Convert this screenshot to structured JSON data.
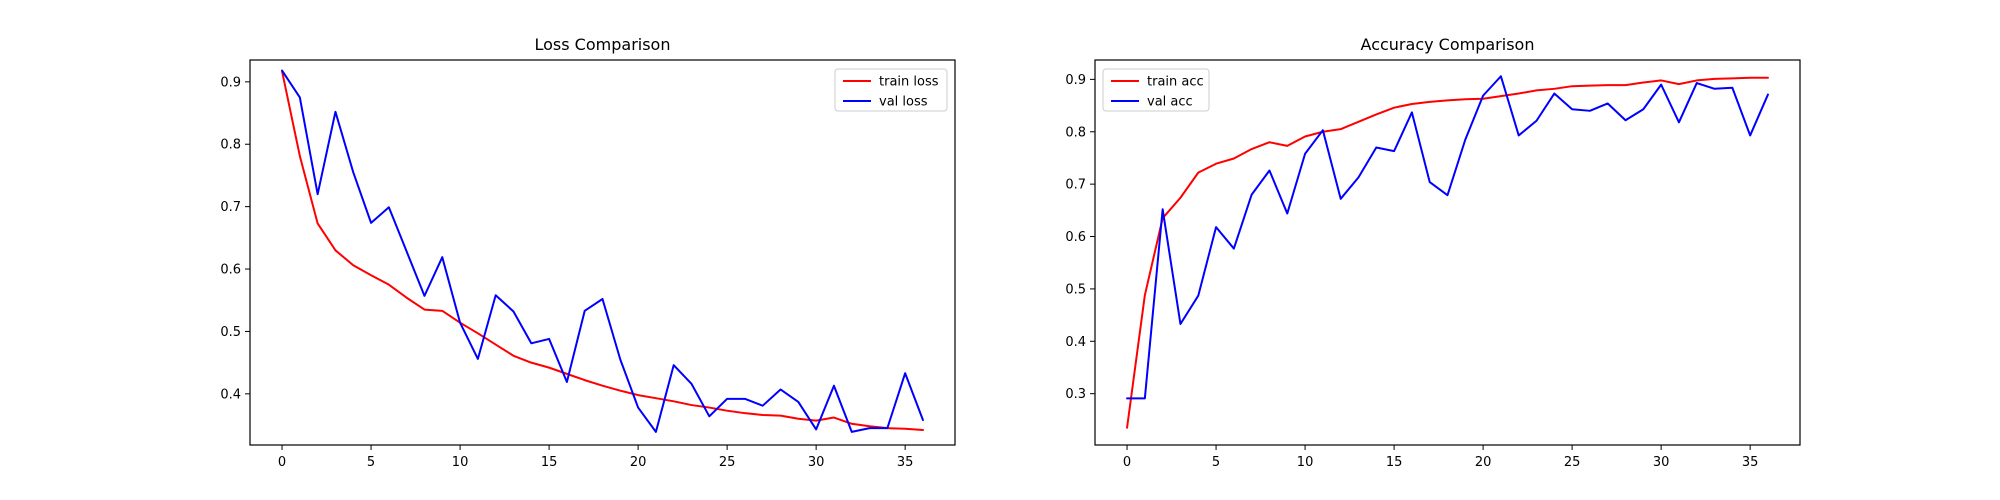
{
  "chart_data": [
    {
      "type": "line",
      "title": "Loss Comparison",
      "xlabel": "",
      "ylabel": "",
      "xlim": [
        -1.8,
        37.8
      ],
      "ylim": [
        0.318,
        0.935
      ],
      "xticks": [
        0,
        5,
        10,
        15,
        20,
        25,
        30,
        35
      ],
      "yticks": [
        0.4,
        0.5,
        0.6,
        0.7,
        0.8,
        0.9
      ],
      "grid": false,
      "legend_position": "top-right",
      "series": [
        {
          "name": "train loss",
          "color": "#ff0000",
          "x": [
            0,
            1,
            2,
            3,
            4,
            5,
            6,
            7,
            8,
            9,
            10,
            11,
            12,
            13,
            14,
            15,
            16,
            17,
            18,
            19,
            20,
            21,
            22,
            23,
            24,
            25,
            26,
            27,
            28,
            29,
            30,
            31,
            32,
            33,
            34,
            35,
            36
          ],
          "y": [
            0.917,
            0.781,
            0.673,
            0.63,
            0.606,
            0.59,
            0.575,
            0.554,
            0.535,
            0.533,
            0.514,
            0.497,
            0.479,
            0.461,
            0.45,
            0.442,
            0.432,
            0.422,
            0.413,
            0.405,
            0.398,
            0.393,
            0.388,
            0.382,
            0.378,
            0.373,
            0.369,
            0.366,
            0.365,
            0.36,
            0.357,
            0.362,
            0.352,
            0.348,
            0.345,
            0.344,
            0.342
          ]
        },
        {
          "name": "val loss",
          "color": "#0000ff",
          "x": [
            0,
            1,
            2,
            3,
            4,
            5,
            6,
            7,
            8,
            9,
            10,
            11,
            12,
            13,
            14,
            15,
            16,
            17,
            18,
            19,
            20,
            21,
            22,
            23,
            24,
            25,
            26,
            27,
            28,
            29,
            30,
            31,
            32,
            33,
            34,
            35,
            36
          ],
          "y": [
            0.918,
            0.875,
            0.72,
            0.852,
            0.755,
            0.674,
            0.699,
            0.628,
            0.557,
            0.619,
            0.514,
            0.456,
            0.558,
            0.532,
            0.481,
            0.488,
            0.419,
            0.533,
            0.552,
            0.455,
            0.378,
            0.339,
            0.446,
            0.416,
            0.364,
            0.392,
            0.392,
            0.381,
            0.407,
            0.387,
            0.343,
            0.413,
            0.339,
            0.345,
            0.345,
            0.433,
            0.358
          ]
        }
      ]
    },
    {
      "type": "line",
      "title": "Accuracy Comparison",
      "xlabel": "",
      "ylabel": "",
      "xlim": [
        -1.8,
        37.8
      ],
      "ylim": [
        0.202,
        0.937
      ],
      "xticks": [
        0,
        5,
        10,
        15,
        20,
        25,
        30,
        35
      ],
      "yticks": [
        0.3,
        0.4,
        0.5,
        0.6,
        0.7,
        0.8,
        0.9
      ],
      "grid": false,
      "legend_position": "top-left",
      "series": [
        {
          "name": "train acc",
          "color": "#ff0000",
          "x": [
            0,
            1,
            2,
            3,
            4,
            5,
            6,
            7,
            8,
            9,
            10,
            11,
            12,
            13,
            14,
            15,
            16,
            17,
            18,
            19,
            20,
            21,
            22,
            23,
            24,
            25,
            26,
            27,
            28,
            29,
            30,
            31,
            32,
            33,
            34,
            35,
            36
          ],
          "y": [
            0.235,
            0.488,
            0.635,
            0.674,
            0.722,
            0.739,
            0.749,
            0.767,
            0.78,
            0.773,
            0.791,
            0.8,
            0.805,
            0.819,
            0.833,
            0.846,
            0.853,
            0.857,
            0.86,
            0.862,
            0.863,
            0.868,
            0.873,
            0.879,
            0.882,
            0.887,
            0.888,
            0.889,
            0.889,
            0.894,
            0.898,
            0.891,
            0.898,
            0.901,
            0.902,
            0.903,
            0.903
          ]
        },
        {
          "name": "val acc",
          "color": "#0000ff",
          "x": [
            0,
            1,
            2,
            3,
            4,
            5,
            6,
            7,
            8,
            9,
            10,
            11,
            12,
            13,
            14,
            15,
            16,
            17,
            18,
            19,
            20,
            21,
            22,
            23,
            24,
            25,
            26,
            27,
            28,
            29,
            30,
            31,
            32,
            33,
            34,
            35,
            36
          ],
          "y": [
            0.291,
            0.291,
            0.652,
            0.433,
            0.487,
            0.618,
            0.577,
            0.68,
            0.726,
            0.644,
            0.758,
            0.803,
            0.672,
            0.713,
            0.77,
            0.763,
            0.837,
            0.704,
            0.679,
            0.785,
            0.869,
            0.906,
            0.793,
            0.821,
            0.873,
            0.843,
            0.84,
            0.854,
            0.822,
            0.843,
            0.89,
            0.818,
            0.893,
            0.882,
            0.884,
            0.793,
            0.871
          ]
        }
      ]
    }
  ]
}
